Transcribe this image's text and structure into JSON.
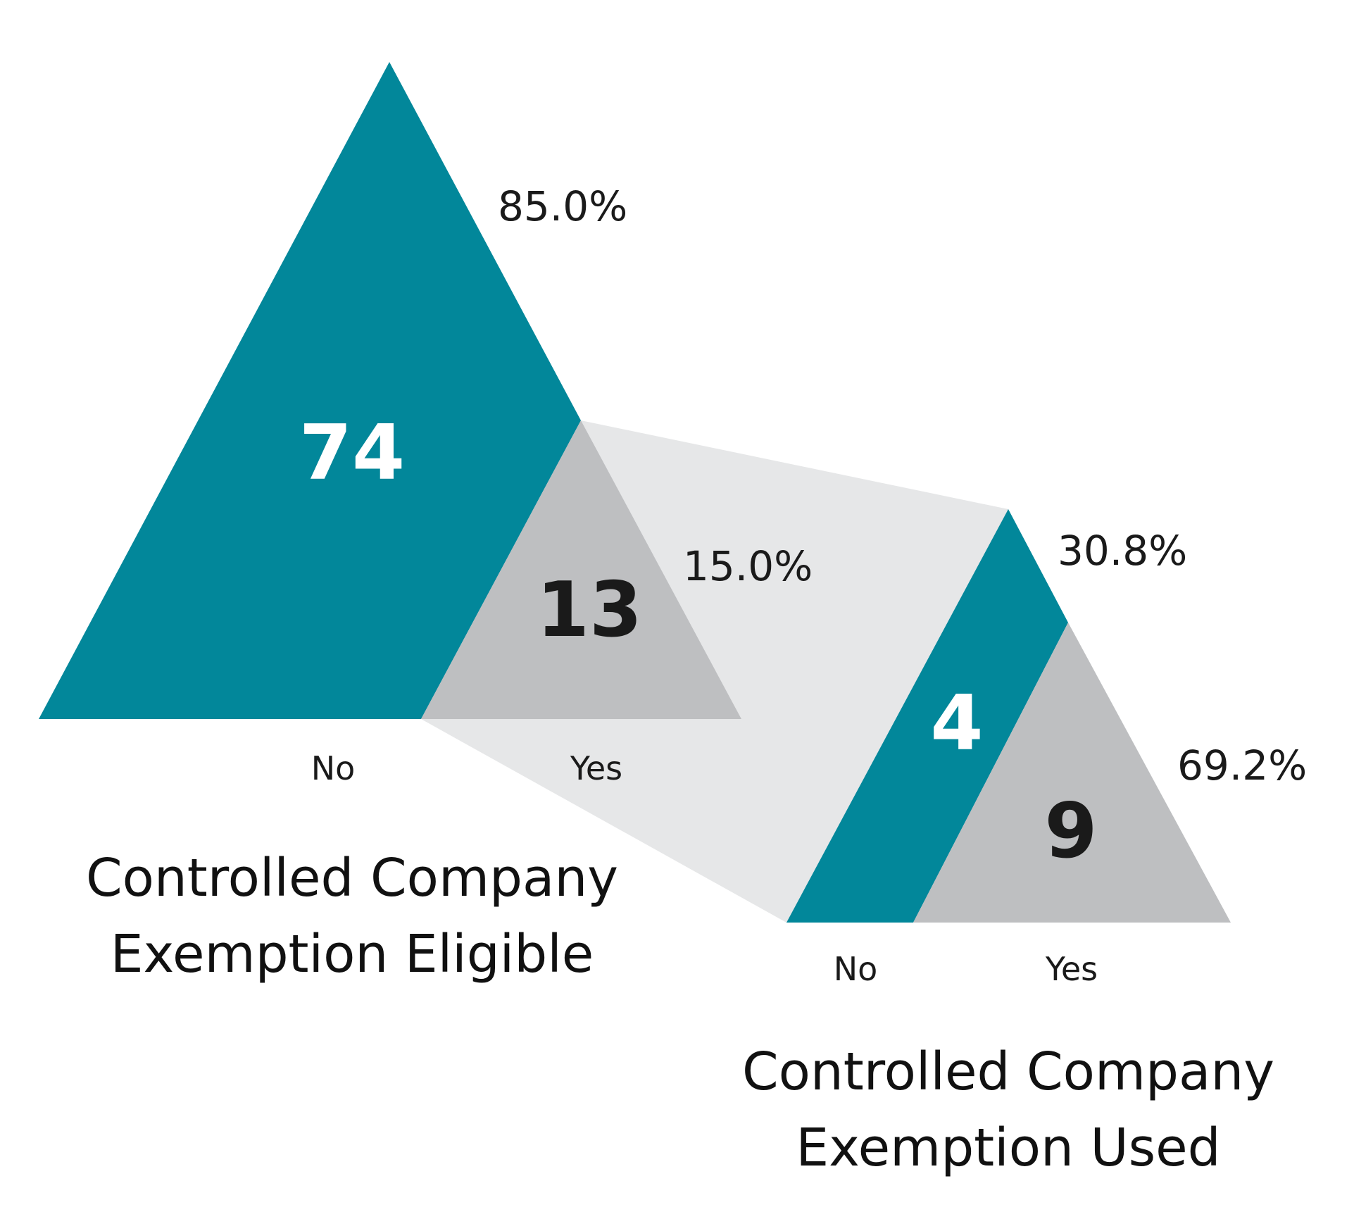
{
  "chart_data": {
    "type": "triangle-proportion",
    "colors": {
      "no": "#02879a",
      "yes": "#bebfc1",
      "connector": "#e6e7e8",
      "count_on_no": "#ffffff",
      "count_on_yes": "#1a1a1a"
    },
    "groups": [
      {
        "id": "eligible",
        "title_lines": [
          "Controlled Company",
          "Exemption Eligible"
        ],
        "segments": [
          {
            "category": "No",
            "count": "74",
            "percent": "85.0%",
            "value": 74
          },
          {
            "category": "Yes",
            "count": "13",
            "percent": "15.0%",
            "value": 13
          }
        ]
      },
      {
        "id": "used",
        "title_lines": [
          "Controlled Company",
          "Exemption Used"
        ],
        "segments": [
          {
            "category": "No",
            "count": "4",
            "percent": "30.8%",
            "value": 4
          },
          {
            "category": "Yes",
            "count": "9",
            "percent": "69.2%",
            "value": 9
          }
        ]
      }
    ]
  }
}
